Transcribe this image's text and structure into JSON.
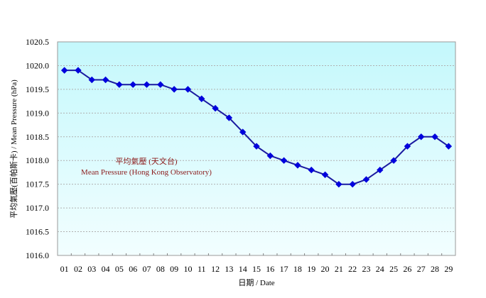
{
  "chart_data": {
    "type": "line",
    "title": "",
    "xlabel": "日期 / Date",
    "ylabel": "平均氣壓(百帕斯卡) / Mean Pressure (hPa)",
    "categories": [
      "01",
      "02",
      "03",
      "04",
      "05",
      "06",
      "07",
      "08",
      "09",
      "10",
      "11",
      "12",
      "13",
      "14",
      "15",
      "16",
      "17",
      "18",
      "19",
      "20",
      "21",
      "22",
      "23",
      "24",
      "25",
      "26",
      "27",
      "28",
      "29"
    ],
    "series": [
      {
        "name": "平均氣壓 (天文台) Mean Pressure (Hong Kong Observatory)",
        "color": "#0000cc",
        "values": [
          1019.9,
          1019.9,
          1019.7,
          1019.7,
          1019.6,
          1019.6,
          1019.6,
          1019.6,
          1019.5,
          1019.5,
          1019.3,
          1019.1,
          1018.9,
          1018.6,
          1018.3,
          1018.1,
          1018.0,
          1017.9,
          1017.8,
          1017.7,
          1017.5,
          1017.5,
          1017.6,
          1017.8,
          1018.0,
          1018.3,
          1018.5,
          1018.5,
          1018.3
        ]
      }
    ],
    "ylim": [
      1016.0,
      1020.5
    ],
    "yticks": [
      "1016.0",
      "1016.5",
      "1017.0",
      "1017.5",
      "1018.0",
      "1018.5",
      "1019.0",
      "1019.5",
      "1020.0",
      "1020.5"
    ],
    "grid": true,
    "annotations": [
      "平均氣壓 (天文台)",
      "Mean Pressure (Hong Kong Observatory)"
    ],
    "legend_position": "none"
  },
  "labels": {
    "annotation_zh": "平均氣壓 (天文台)",
    "annotation_en": "Mean Pressure (Hong Kong Observatory)",
    "xlabel": "日期 / Date",
    "ylabel": "平均氣壓(百帕斯卡) / Mean Pressure (hPa)"
  },
  "colors": {
    "plot_top": "#c4f8fc",
    "plot_bottom": "#f2feff",
    "line": "#1a1aa0",
    "marker": "#0000dd",
    "annotation": "#8b1a1a"
  }
}
